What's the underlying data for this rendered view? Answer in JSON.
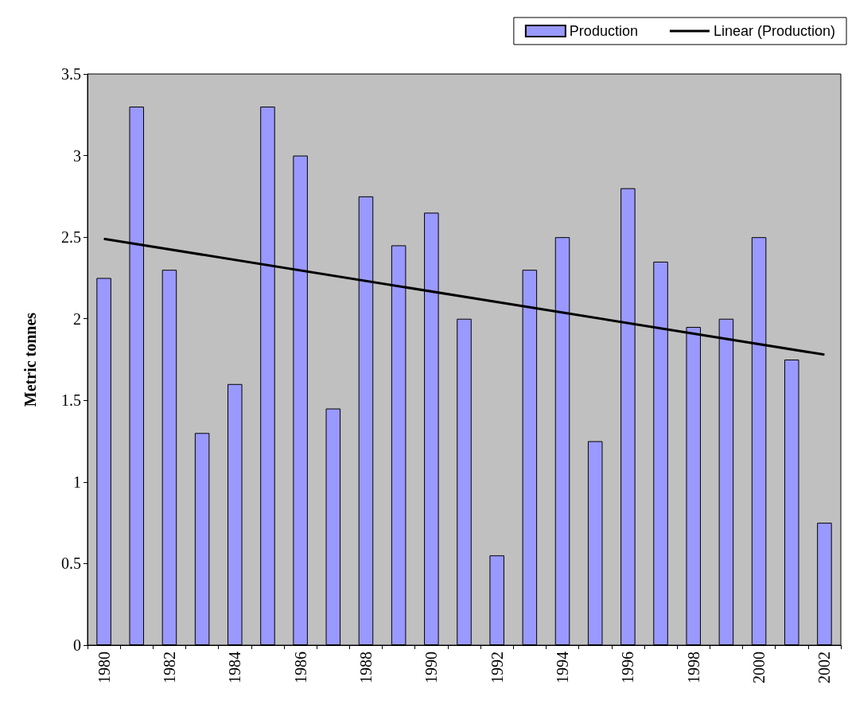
{
  "chart_data": {
    "type": "bar",
    "ylabel": "Metric tonnes",
    "categories": [
      "1980",
      null,
      "1982",
      null,
      "1984",
      null,
      "1986",
      null,
      "1988",
      null,
      "1990",
      null,
      "1992",
      null,
      "1994",
      null,
      "1996",
      null,
      "1998",
      null,
      "2000",
      null,
      "2002"
    ],
    "series": [
      {
        "name": "Production",
        "color": "#9999ff",
        "values": [
          2.25,
          3.3,
          2.3,
          1.3,
          1.6,
          3.3,
          3.0,
          1.45,
          2.75,
          2.45,
          2.65,
          2.0,
          0.55,
          2.3,
          2.5,
          1.25,
          2.8,
          2.35,
          1.95,
          2.0,
          2.5,
          1.75,
          0.75
        ]
      },
      {
        "name": "Linear (Production)",
        "type": "line",
        "color": "#000000",
        "values": [
          2.49,
          null,
          null,
          null,
          null,
          null,
          null,
          null,
          null,
          null,
          null,
          null,
          null,
          null,
          null,
          null,
          null,
          null,
          null,
          null,
          null,
          null,
          1.78
        ]
      }
    ],
    "ylim": [
      0,
      3.5
    ],
    "yticks": [
      0,
      0.5,
      1,
      1.5,
      2,
      2.5,
      3,
      3.5
    ],
    "grid": false,
    "legend": "top right",
    "marker": "none"
  }
}
